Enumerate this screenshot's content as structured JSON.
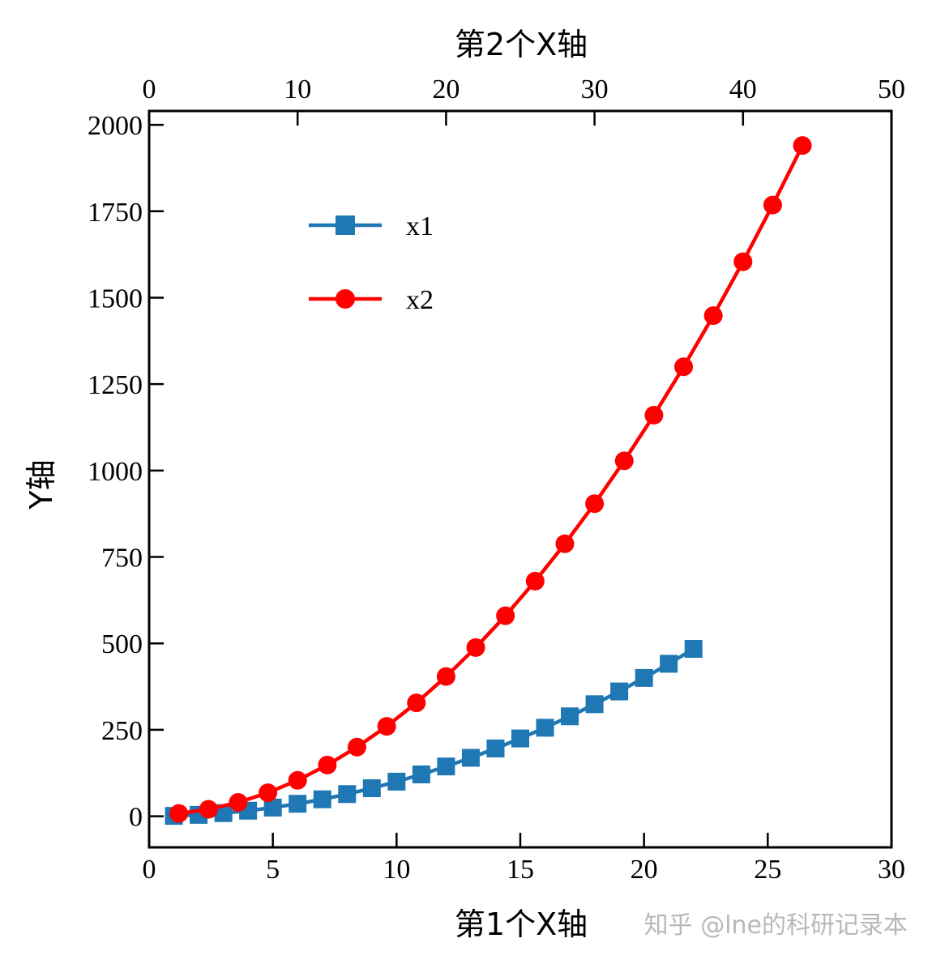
{
  "chart_data": {
    "type": "line",
    "xlabel_bottom": "第1个X轴",
    "xlabel_top": "第2个X轴",
    "ylabel": "Y轴",
    "xlim_bottom": [
      0,
      30
    ],
    "xlim_top": [
      0,
      50
    ],
    "ylim": [
      -90,
      2040
    ],
    "xticks_bottom": [
      0,
      5,
      10,
      15,
      20,
      25,
      30
    ],
    "xticks_top": [
      0,
      10,
      20,
      30,
      40,
      50
    ],
    "yticks": [
      0,
      250,
      500,
      750,
      1000,
      1250,
      1500,
      1750,
      2000
    ],
    "grid": false,
    "legend_position": "upper-left",
    "series": [
      {
        "name": "x1",
        "axis": "bottom",
        "color": "#1f77b4",
        "marker": "square",
        "x": [
          1,
          2,
          3,
          4,
          5,
          6,
          7,
          8,
          9,
          10,
          11,
          12,
          13,
          14,
          15,
          16,
          17,
          18,
          19,
          20,
          21,
          22
        ],
        "y": [
          1,
          4,
          9,
          16,
          25,
          36,
          49,
          64,
          81,
          100,
          121,
          144,
          169,
          196,
          225,
          256,
          289,
          324,
          361,
          400,
          441,
          484
        ]
      },
      {
        "name": "x2",
        "axis": "top",
        "color": "#ff0000",
        "marker": "circle",
        "x": [
          2,
          4,
          6,
          8,
          10,
          12,
          14,
          16,
          18,
          20,
          22,
          24,
          26,
          28,
          30,
          32,
          34,
          36,
          38,
          40,
          42,
          44
        ],
        "y": [
          8,
          20,
          40,
          68,
          104,
          148,
          200,
          260,
          328,
          404,
          488,
          580,
          680,
          788,
          904,
          1028,
          1160,
          1300,
          1448,
          1604,
          1768,
          1940
        ]
      }
    ]
  },
  "watermark": "知乎 @lne的科研记录本"
}
